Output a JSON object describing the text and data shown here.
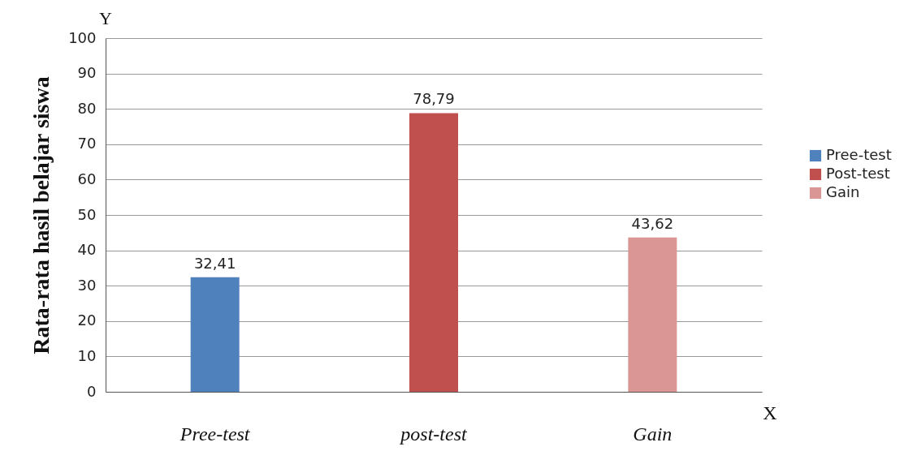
{
  "chart_data": {
    "type": "bar",
    "ylabel": "Rata-rata hasil belajar siswa",
    "xlabel": "X",
    "annotations": [
      "Y"
    ],
    "categories": [
      "Pree-test",
      "post-test",
      "Gain"
    ],
    "series": [
      {
        "name": "Pree-test",
        "color": "#4f81bd",
        "values": [
          32.41,
          null,
          null
        ],
        "value_labels": [
          "32,41",
          null,
          null
        ]
      },
      {
        "name": "Post-test",
        "color": "#c0504d",
        "values": [
          null,
          78.79,
          null
        ],
        "value_labels": [
          null,
          "78,79",
          null
        ]
      },
      {
        "name": "Gain",
        "color": "#d99694",
        "values": [
          null,
          null,
          43.62
        ],
        "value_labels": [
          null,
          null,
          "43,62"
        ]
      }
    ],
    "ylim": [
      0,
      100
    ],
    "yticks": [
      0,
      10,
      20,
      30,
      40,
      50,
      60,
      70,
      80,
      90,
      100
    ],
    "grid": "y",
    "legend": "right"
  }
}
